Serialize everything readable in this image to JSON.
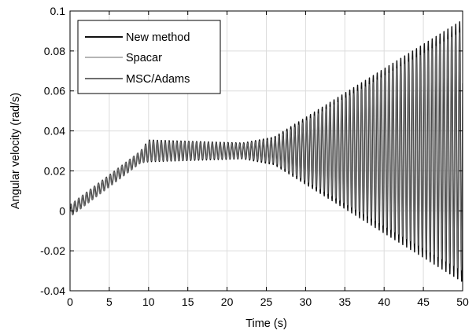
{
  "chart_data": {
    "type": "line",
    "title": "",
    "xlabel": "Time (s)",
    "ylabel": "Angular velocity (rad/s)",
    "xlim": [
      0,
      50
    ],
    "ylim": [
      -0.04,
      0.1
    ],
    "xticks": [
      0,
      5,
      10,
      15,
      20,
      25,
      30,
      35,
      40,
      45,
      50
    ],
    "yticks": [
      -0.04,
      -0.02,
      0,
      0.02,
      0.04,
      0.06,
      0.08,
      0.1
    ],
    "xtick_labels": [
      "0",
      "5",
      "10",
      "15",
      "20",
      "25",
      "30",
      "35",
      "40",
      "45",
      "50"
    ],
    "ytick_labels": [
      "-0.04",
      "-0.02",
      "0",
      "0.02",
      "0.04",
      "0.06",
      "0.08",
      "0.1"
    ],
    "grid": true,
    "legend_position": "top-left",
    "oscillation_frequency_hz": 2.0,
    "series": [
      {
        "name": "New method",
        "color": "#111111",
        "mean": {
          "x": [
            0,
            10,
            50
          ],
          "y": [
            0.0,
            0.03,
            0.03
          ]
        },
        "amplitude": {
          "x": [
            0,
            9,
            10,
            22,
            26,
            50
          ],
          "y": [
            0.003,
            0.003,
            0.0055,
            0.004,
            0.007,
            0.066
          ]
        }
      },
      {
        "name": "Spacar",
        "color": "#b5b5b5",
        "mean": {
          "x": [
            0,
            10,
            50
          ],
          "y": [
            0.0,
            0.03,
            0.03
          ]
        },
        "amplitude": {
          "x": [
            0,
            9,
            10,
            22,
            26,
            50
          ],
          "y": [
            0.003,
            0.003,
            0.005,
            0.0035,
            0.0065,
            0.063
          ]
        }
      },
      {
        "name": "MSC/Adams",
        "color": "#6e6e6e",
        "mean": {
          "x": [
            0,
            10,
            50
          ],
          "y": [
            0.0,
            0.03,
            0.03
          ]
        },
        "amplitude": {
          "x": [
            0,
            9,
            10,
            22,
            26,
            50
          ],
          "y": [
            0.003,
            0.003,
            0.005,
            0.0035,
            0.006,
            0.06
          ]
        }
      }
    ]
  }
}
